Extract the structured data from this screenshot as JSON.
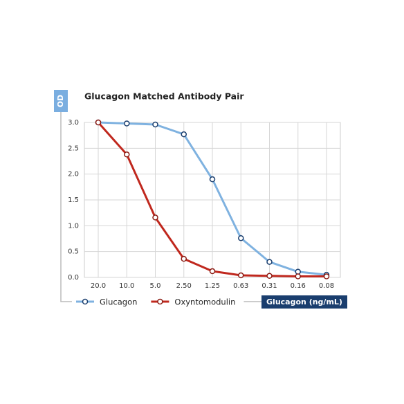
{
  "chart_data": {
    "type": "line",
    "title": "Glucagon Matched Antibody Pair",
    "y_label": "OD",
    "x_label": "Glucagon (ng/mL)",
    "categories": [
      "20.0",
      "10.0",
      "5.0",
      "2.50",
      "1.25",
      "0.63",
      "0.31",
      "0.16",
      "0.08"
    ],
    "series": [
      {
        "name": "Glucagon",
        "color": "#7fb2e0",
        "values": [
          3.0,
          2.98,
          2.96,
          2.77,
          1.9,
          0.76,
          0.3,
          0.11,
          0.05
        ]
      },
      {
        "name": "Oxyntomodulin",
        "color": "#c0281e",
        "values": [
          3.0,
          2.38,
          1.16,
          0.36,
          0.12,
          0.04,
          0.03,
          0.02,
          0.02
        ]
      }
    ],
    "ylim": [
      0,
      3
    ],
    "yticks": [
      {
        "value": 0,
        "label": "0.0"
      },
      0.5,
      {
        "value": 1,
        "label": "1.0"
      },
      1.5,
      {
        "value": 2,
        "label": "2.0"
      },
      2.5,
      {
        "value": 3,
        "label": "3.0"
      }
    ],
    "grid": true
  }
}
